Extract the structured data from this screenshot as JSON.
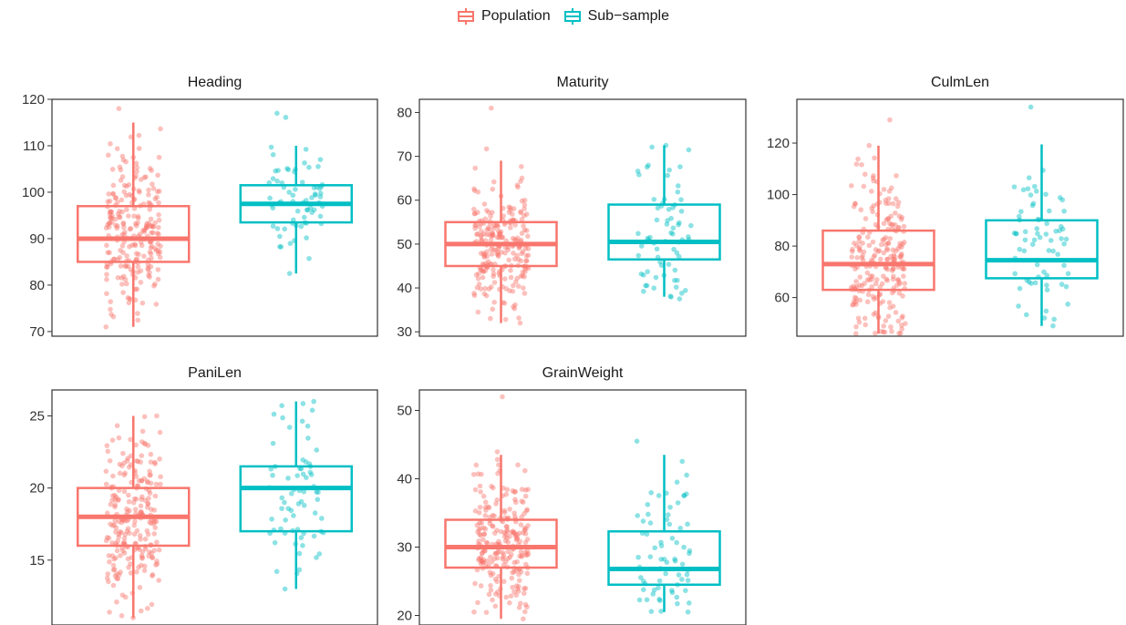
{
  "colors": {
    "Population": "#f8766d",
    "Sub-sample": "#00bfc4"
  },
  "legend": {
    "items": [
      "Population",
      "Sub−sample"
    ]
  },
  "chart_data": [
    {
      "type": "box",
      "title": "Heading",
      "ylim": [
        69,
        120
      ],
      "yticks": [
        70,
        80,
        90,
        100,
        110,
        120
      ],
      "series": [
        {
          "name": "Population",
          "n": 240,
          "box": {
            "whisker_low": 71,
            "q1": 85,
            "median": 90,
            "q3": 97,
            "whisker_high": 115
          },
          "points_range": [
            71,
            118
          ],
          "points_center": 91
        },
        {
          "name": "Sub−sample",
          "n": 70,
          "box": {
            "whisker_low": 82.5,
            "q1": 93.5,
            "median": 97.5,
            "q3": 101.5,
            "whisker_high": 110
          },
          "points_range": [
            82.5,
            117
          ],
          "points_center": 98
        }
      ]
    },
    {
      "type": "box",
      "title": "Maturity",
      "ylim": [
        29,
        83
      ],
      "yticks": [
        30,
        40,
        50,
        60,
        70,
        80
      ],
      "series": [
        {
          "name": "Population",
          "n": 240,
          "box": {
            "whisker_low": 32,
            "q1": 45,
            "median": 50,
            "q3": 55,
            "whisker_high": 69
          },
          "points_range": [
            32,
            81
          ],
          "points_center": 50
        },
        {
          "name": "Sub−sample",
          "n": 70,
          "box": {
            "whisker_low": 38,
            "q1": 46.5,
            "median": 50.5,
            "q3": 59,
            "whisker_high": 72.5
          },
          "points_range": [
            37.5,
            72.5
          ],
          "points_center": 52
        }
      ]
    },
    {
      "type": "box",
      "title": "CulmLen",
      "ylim": [
        45,
        137
      ],
      "yticks": [
        60,
        80,
        100,
        120
      ],
      "series": [
        {
          "name": "Population",
          "n": 240,
          "box": {
            "whisker_low": 46,
            "q1": 63,
            "median": 73,
            "q3": 86,
            "whisker_high": 119
          },
          "points_range": [
            46,
            129
          ],
          "points_center": 74
        },
        {
          "name": "Sub−sample",
          "n": 70,
          "box": {
            "whisker_low": 49,
            "q1": 67.5,
            "median": 74.5,
            "q3": 90,
            "whisker_high": 119.5
          },
          "points_range": [
            49,
            134
          ],
          "points_center": 78
        }
      ]
    },
    {
      "type": "box",
      "title": "PaniLen",
      "ylim": [
        10.5,
        26.8
      ],
      "yticks": [
        15,
        20,
        25
      ],
      "series": [
        {
          "name": "Population",
          "n": 240,
          "box": {
            "whisker_low": 11,
            "q1": 16,
            "median": 18,
            "q3": 20,
            "whisker_high": 25
          },
          "points_range": [
            11,
            25
          ],
          "points_center": 18
        },
        {
          "name": "Sub−sample",
          "n": 70,
          "box": {
            "whisker_low": 13,
            "q1": 17,
            "median": 20,
            "q3": 21.5,
            "whisker_high": 26
          },
          "points_range": [
            13,
            26
          ],
          "points_center": 20
        }
      ]
    },
    {
      "type": "box",
      "title": "GrainWeight",
      "ylim": [
        18.6,
        53
      ],
      "yticks": [
        20,
        30,
        40,
        50
      ],
      "series": [
        {
          "name": "Population",
          "n": 240,
          "box": {
            "whisker_low": 19.5,
            "q1": 27,
            "median": 30,
            "q3": 34,
            "whisker_high": 43.5
          },
          "points_range": [
            19.5,
            52
          ],
          "points_center": 30.5
        },
        {
          "name": "Sub−sample",
          "n": 70,
          "box": {
            "whisker_low": 20.5,
            "q1": 24.5,
            "median": 26.8,
            "q3": 32.3,
            "whisker_high": 43.5
          },
          "points_range": [
            20.5,
            45.5
          ],
          "points_center": 28.5
        }
      ]
    }
  ]
}
